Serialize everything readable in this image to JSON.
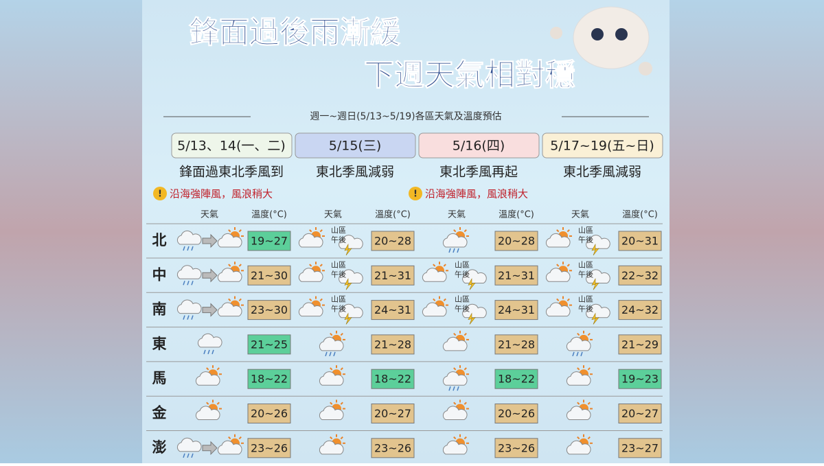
{
  "header": {
    "title_lines": [
      "鋒面過後雨漸緩",
      "下週天氣相對穩"
    ],
    "subtitle": "週一~週日(5/13~5/19)各區天氣及溫度預估"
  },
  "periods": [
    {
      "date": "5/13、14(一、二)",
      "color": "#eef6ea",
      "description": "鋒面過東北季風到",
      "warning": "沿海強陣風，風浪稍大"
    },
    {
      "date": "5/15(三)",
      "color": "#c9d6f2",
      "description": "東北季風減弱"
    },
    {
      "date": "5/16(四)",
      "color": "#f9dede",
      "description": "東北季風再起",
      "warning": "沿海強陣風，風浪稍大"
    },
    {
      "date": "5/17~19(五~日)",
      "color": "#faf0d6",
      "description": "東北季風減弱"
    }
  ],
  "column_labels": {
    "weather": "天氣",
    "temperature": "溫度(°C)"
  },
  "rows": [
    {
      "region": "北",
      "cells": [
        {
          "weather": "rain-to-sun",
          "temp": "19~27",
          "color": "#5ccf9a"
        },
        {
          "weather": "mountain-storm",
          "note": [
            "山區",
            "午後"
          ],
          "temp": "20~28",
          "color": "#e2c48e"
        },
        {
          "weather": "sun-cloud-rain",
          "temp": "20~28",
          "color": "#e2c48e"
        },
        {
          "weather": "mountain-storm",
          "note": [
            "山區",
            "午後"
          ],
          "temp": "20~31",
          "color": "#e2c48e"
        }
      ]
    },
    {
      "region": "中",
      "cells": [
        {
          "weather": "rain-to-sun",
          "temp": "21~30",
          "color": "#e2c48e"
        },
        {
          "weather": "mountain-storm",
          "note": [
            "山區",
            "午後"
          ],
          "temp": "21~31",
          "color": "#e2c48e"
        },
        {
          "weather": "mountain-storm",
          "note": [
            "山區",
            "午後"
          ],
          "temp": "21~31",
          "color": "#e2c48e"
        },
        {
          "weather": "mountain-storm",
          "note": [
            "山區",
            "午後"
          ],
          "temp": "22~32",
          "color": "#e2c48e"
        }
      ]
    },
    {
      "region": "南",
      "cells": [
        {
          "weather": "rain-to-sun",
          "temp": "23~30",
          "color": "#e2c48e"
        },
        {
          "weather": "mountain-storm",
          "note": [
            "山區",
            "午後"
          ],
          "temp": "24~31",
          "color": "#e2c48e"
        },
        {
          "weather": "mountain-storm",
          "note": [
            "山區",
            "午後"
          ],
          "temp": "24~31",
          "color": "#e2c48e"
        },
        {
          "weather": "mountain-storm",
          "note": [
            "山區",
            "午後"
          ],
          "temp": "24~32",
          "color": "#e2c48e"
        }
      ]
    },
    {
      "region": "東",
      "cells": [
        {
          "weather": "rain",
          "temp": "21~25",
          "color": "#5ccf9a"
        },
        {
          "weather": "sun-cloud-rain",
          "temp": "21~28",
          "color": "#e2c48e"
        },
        {
          "weather": "sun-cloud",
          "temp": "21~28",
          "color": "#e2c48e"
        },
        {
          "weather": "sun-cloud-rain",
          "temp": "21~29",
          "color": "#e2c48e"
        }
      ]
    },
    {
      "region": "馬",
      "cells": [
        {
          "weather": "sun-cloud",
          "temp": "18~22",
          "color": "#5ccf9a"
        },
        {
          "weather": "sun-cloud",
          "temp": "18~22",
          "color": "#5ccf9a"
        },
        {
          "weather": "sun-cloud-rain",
          "temp": "18~22",
          "color": "#5ccf9a"
        },
        {
          "weather": "sun-cloud",
          "temp": "19~23",
          "color": "#5ccf9a"
        }
      ]
    },
    {
      "region": "金",
      "cells": [
        {
          "weather": "sun-cloud",
          "temp": "20~26",
          "color": "#e2c48e"
        },
        {
          "weather": "sun-cloud",
          "temp": "20~27",
          "color": "#e2c48e"
        },
        {
          "weather": "sun-cloud",
          "temp": "20~26",
          "color": "#e2c48e"
        },
        {
          "weather": "sun-cloud",
          "temp": "20~27",
          "color": "#e2c48e"
        }
      ]
    },
    {
      "region": "澎",
      "cells": [
        {
          "weather": "rain-to-sun",
          "temp": "23~26",
          "color": "#e2c48e"
        },
        {
          "weather": "sun-cloud",
          "temp": "23~26",
          "color": "#e2c48e"
        },
        {
          "weather": "sun-cloud",
          "temp": "23~26",
          "color": "#e2c48e"
        },
        {
          "weather": "sun-cloud",
          "temp": "23~27",
          "color": "#e2c48e"
        }
      ]
    }
  ]
}
